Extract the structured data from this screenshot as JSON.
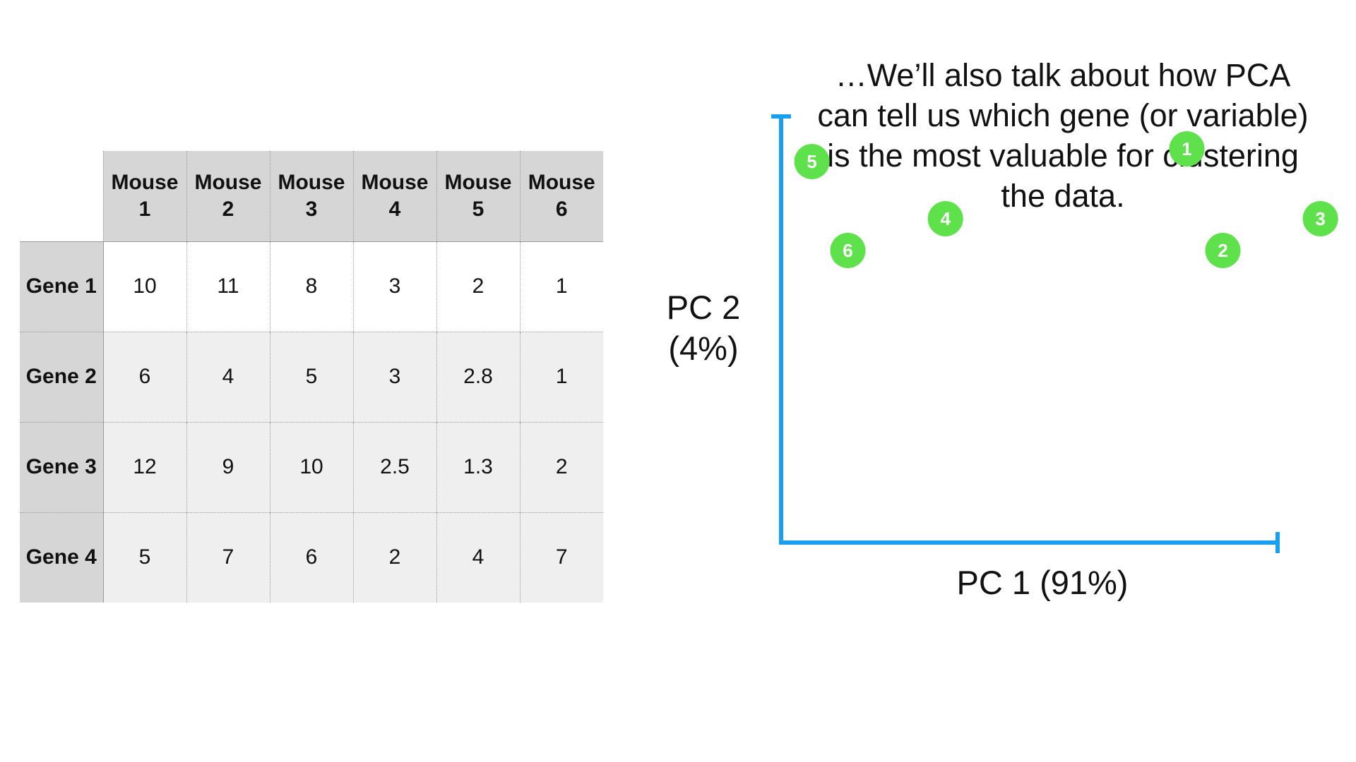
{
  "table": {
    "corner": "",
    "columns": [
      {
        "line1": "Mouse",
        "line2": "1"
      },
      {
        "line1": "Mouse",
        "line2": "2"
      },
      {
        "line1": "Mouse",
        "line2": "3"
      },
      {
        "line1": "Mouse",
        "line2": "4"
      },
      {
        "line1": "Mouse",
        "line2": "5"
      },
      {
        "line1": "Mouse",
        "line2": "6"
      }
    ],
    "rows": [
      {
        "label": "Gene 1",
        "values": [
          "10",
          "11",
          "8",
          "3",
          "2",
          "1"
        ]
      },
      {
        "label": "Gene 2",
        "values": [
          "6",
          "4",
          "5",
          "3",
          "2.8",
          "1"
        ]
      },
      {
        "label": "Gene 3",
        "values": [
          "12",
          "9",
          "10",
          "2.5",
          "1.3",
          "2"
        ]
      },
      {
        "label": "Gene 4",
        "values": [
          "5",
          "7",
          "6",
          "2",
          "4",
          "7"
        ]
      }
    ]
  },
  "caption": {
    "line1": "…We’ll also talk about how PCA",
    "line2": "can tell us which gene (or variable)",
    "line3": "is the most valuable for clustering",
    "line4": "the data."
  },
  "chart_data": {
    "type": "scatter",
    "xlabel": "PC 1 (91%)",
    "ylabel_line1": "PC 2",
    "ylabel_line2": "(4%)",
    "grid": false,
    "axis_color": "#1a9ff0",
    "point_color": "#5ee14a",
    "points": [
      {
        "label": "1",
        "x": 0.79,
        "y": 0.62
      },
      {
        "label": "2",
        "x": 0.86,
        "y": 0.46
      },
      {
        "label": "3",
        "x": 1.05,
        "y": 0.51
      },
      {
        "label": "4",
        "x": 0.32,
        "y": 0.51
      },
      {
        "label": "5",
        "x": 0.06,
        "y": 0.6
      },
      {
        "label": "6",
        "x": 0.13,
        "y": 0.46
      }
    ]
  }
}
